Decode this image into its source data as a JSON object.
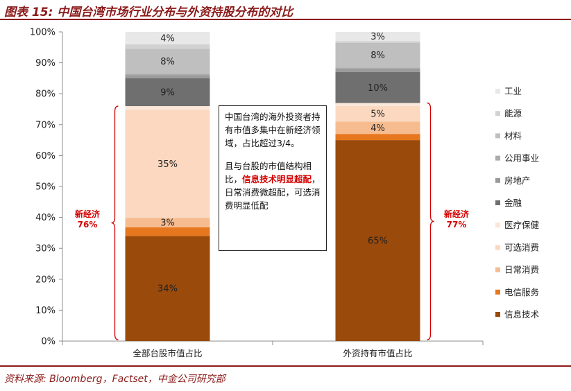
{
  "header": {
    "title": "图表 15:  中国台湾市场行业分布与外资持股分布的对比"
  },
  "callout": {
    "para1": "中国台湾的海外投资者持有市值多集中在新经济领域，占比超过3/4。",
    "para2_pre": "且与台股的市值结构相比，",
    "para2_highlight": "信息技术明显超配",
    "para2_post": "，日常消费微超配，可选消费明显低配"
  },
  "annotations": {
    "left": {
      "label": "新经济",
      "value": "76%"
    },
    "right": {
      "label": "新经济",
      "value": "77%"
    }
  },
  "footer": {
    "source": "资料来源:  Bloomberg，Factset，中金公司研究部"
  },
  "colors": {
    "highlight": "#d40000",
    "title": "#8b1a1a",
    "series": [
      "#9a4a0b",
      "#e6771f",
      "#f6bc90",
      "#fbd8bf",
      "#fae7da",
      "#6f6f6f",
      "#9a9a9a",
      "#acacac",
      "#bfbfbf",
      "#d2d2d2",
      "#e8e8e8"
    ]
  },
  "chart_data": {
    "type": "bar",
    "stacked": true,
    "categories": [
      "全部台股市值占比",
      "外资持有市值占比"
    ],
    "ylim": [
      0,
      100
    ],
    "yticks": [
      "0%",
      "10%",
      "20%",
      "30%",
      "40%",
      "50%",
      "60%",
      "70%",
      "80%",
      "90%",
      "100%"
    ],
    "legend_position": "right",
    "series": [
      {
        "name": "信息技术",
        "values": [
          34,
          65
        ],
        "labels": [
          "34%",
          "65%"
        ]
      },
      {
        "name": "电信服务",
        "values": [
          2.8,
          2
        ],
        "labels": [
          "",
          ""
        ]
      },
      {
        "name": "日常消费",
        "values": [
          3,
          4
        ],
        "labels": [
          "3%",
          "4%"
        ]
      },
      {
        "name": "可选消费",
        "values": [
          35,
          5
        ],
        "labels": [
          "35%",
          "5%"
        ]
      },
      {
        "name": "医疗保健",
        "values": [
          1.2,
          1
        ],
        "labels": [
          "",
          ""
        ]
      },
      {
        "name": "金融",
        "values": [
          9,
          10
        ],
        "labels": [
          "9%",
          "10%"
        ]
      },
      {
        "name": "房地产",
        "values": [
          1,
          1
        ],
        "labels": [
          "",
          ""
        ]
      },
      {
        "name": "公用事业",
        "values": [
          0.5,
          0.5
        ],
        "labels": [
          "",
          ""
        ]
      },
      {
        "name": "材料",
        "values": [
          8,
          8
        ],
        "labels": [
          "8%",
          "8%"
        ]
      },
      {
        "name": "能源",
        "values": [
          1.5,
          0.5
        ],
        "labels": [
          "",
          ""
        ]
      },
      {
        "name": "工业",
        "values": [
          4,
          3
        ],
        "labels": [
          "4%",
          "3%"
        ]
      }
    ]
  }
}
